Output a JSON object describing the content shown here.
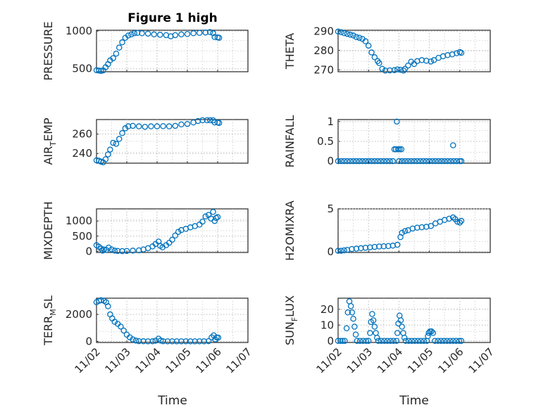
{
  "figure": {
    "title": "Figure 1 high"
  },
  "chart_data": [
    {
      "type": "scatter",
      "id": "pressure",
      "ylabel": "PRESSURE",
      "xlim": [
        0,
        5
      ],
      "ylim": [
        460,
        1010
      ],
      "yticks": [
        500,
        1000
      ],
      "xticks": [
        "11/02",
        "11/03",
        "11/04",
        "11/05",
        "11/06",
        "11/07"
      ],
      "points": [
        [
          0.0,
          480
        ],
        [
          0.08,
          475
        ],
        [
          0.15,
          470
        ],
        [
          0.22,
          478
        ],
        [
          0.3,
          520
        ],
        [
          0.38,
          560
        ],
        [
          0.45,
          610
        ],
        [
          0.55,
          640
        ],
        [
          0.65,
          700
        ],
        [
          0.75,
          780
        ],
        [
          0.85,
          850
        ],
        [
          0.95,
          910
        ],
        [
          1.05,
          940
        ],
        [
          1.15,
          955
        ],
        [
          1.25,
          970
        ],
        [
          1.35,
          975
        ],
        [
          1.5,
          970
        ],
        [
          1.7,
          965
        ],
        [
          1.9,
          955
        ],
        [
          2.1,
          950
        ],
        [
          2.3,
          945
        ],
        [
          2.45,
          930
        ],
        [
          2.6,
          945
        ],
        [
          2.8,
          955
        ],
        [
          3.0,
          960
        ],
        [
          3.2,
          970
        ],
        [
          3.4,
          975
        ],
        [
          3.6,
          980
        ],
        [
          3.75,
          985
        ],
        [
          3.85,
          970
        ],
        [
          3.9,
          920
        ],
        [
          4.0,
          915
        ],
        [
          4.05,
          910
        ]
      ]
    },
    {
      "type": "scatter",
      "id": "theta",
      "ylabel": "THETA",
      "xlim": [
        0,
        5
      ],
      "ylim": [
        269,
        290.5
      ],
      "yticks": [
        270,
        280,
        290
      ],
      "xticks": [
        "11/02",
        "11/03",
        "11/04",
        "11/05",
        "11/06",
        "11/07"
      ],
      "points": [
        [
          0.0,
          289.8
        ],
        [
          0.1,
          289.5
        ],
        [
          0.2,
          289.0
        ],
        [
          0.3,
          288.6
        ],
        [
          0.4,
          288.2
        ],
        [
          0.5,
          287.8
        ],
        [
          0.6,
          287.0
        ],
        [
          0.7,
          286.6
        ],
        [
          0.8,
          286.0
        ],
        [
          0.9,
          284.8
        ],
        [
          1.0,
          282.5
        ],
        [
          1.1,
          279.0
        ],
        [
          1.2,
          276.5
        ],
        [
          1.3,
          274.5
        ],
        [
          1.35,
          273.5
        ],
        [
          1.45,
          270.5
        ],
        [
          1.55,
          269.6
        ],
        [
          1.7,
          269.7
        ],
        [
          1.85,
          269.8
        ],
        [
          1.95,
          270.2
        ],
        [
          2.05,
          270.0
        ],
        [
          2.15,
          269.6
        ],
        [
          2.2,
          270.5
        ],
        [
          2.3,
          272.2
        ],
        [
          2.4,
          274.2
        ],
        [
          2.5,
          273.0
        ],
        [
          2.6,
          274.5
        ],
        [
          2.75,
          275.0
        ],
        [
          2.9,
          274.7
        ],
        [
          3.05,
          274.3
        ],
        [
          3.15,
          275.0
        ],
        [
          3.3,
          276.2
        ],
        [
          3.45,
          277.0
        ],
        [
          3.6,
          277.6
        ],
        [
          3.75,
          278.0
        ],
        [
          3.9,
          278.6
        ],
        [
          4.0,
          279.2
        ],
        [
          4.05,
          278.8
        ]
      ]
    },
    {
      "type": "scatter",
      "id": "air_temp",
      "ylabel": "AIR_TEMP",
      "xlim": [
        0,
        5
      ],
      "ylim": [
        230,
        275
      ],
      "yticks": [
        240,
        260
      ],
      "xticks": [
        "11/02",
        "11/03",
        "11/04",
        "11/05",
        "11/06",
        "11/07"
      ],
      "points": [
        [
          0.0,
          233
        ],
        [
          0.08,
          232.5
        ],
        [
          0.15,
          231.5
        ],
        [
          0.22,
          230.8
        ],
        [
          0.3,
          234
        ],
        [
          0.38,
          239
        ],
        [
          0.45,
          244
        ],
        [
          0.55,
          251
        ],
        [
          0.65,
          250
        ],
        [
          0.75,
          255
        ],
        [
          0.85,
          261
        ],
        [
          0.95,
          266
        ],
        [
          1.05,
          268
        ],
        [
          1.2,
          268.5
        ],
        [
          1.4,
          268
        ],
        [
          1.6,
          267.5
        ],
        [
          1.8,
          268
        ],
        [
          2.0,
          268
        ],
        [
          2.2,
          268.2
        ],
        [
          2.4,
          268
        ],
        [
          2.6,
          268.5
        ],
        [
          2.8,
          270
        ],
        [
          3.0,
          270.5
        ],
        [
          3.2,
          272
        ],
        [
          3.35,
          273.5
        ],
        [
          3.5,
          275
        ],
        [
          3.65,
          276
        ],
        [
          3.75,
          277
        ],
        [
          3.85,
          275
        ],
        [
          3.9,
          272
        ],
        [
          4.0,
          272
        ],
        [
          4.05,
          271.5
        ]
      ]
    },
    {
      "type": "scatter",
      "id": "rainfall",
      "ylabel": "RAINFALL",
      "xlim": [
        0,
        5
      ],
      "ylim": [
        -0.05,
        1.05
      ],
      "yticks": [
        0,
        0.5,
        1
      ],
      "ytick_labels": [
        "0",
        "0.5",
        "1"
      ],
      "xticks": [
        "11/02",
        "11/03",
        "11/04",
        "11/05",
        "11/06",
        "11/07"
      ],
      "points": [
        [
          0.0,
          0
        ],
        [
          0.1,
          0
        ],
        [
          0.2,
          0
        ],
        [
          0.3,
          0
        ],
        [
          0.4,
          0
        ],
        [
          0.5,
          0
        ],
        [
          0.6,
          0
        ],
        [
          0.7,
          0
        ],
        [
          0.8,
          0
        ],
        [
          0.9,
          0
        ],
        [
          1.0,
          0
        ],
        [
          1.1,
          0
        ],
        [
          1.2,
          0
        ],
        [
          1.3,
          0
        ],
        [
          1.4,
          0
        ],
        [
          1.5,
          0
        ],
        [
          1.6,
          0
        ],
        [
          1.7,
          0
        ],
        [
          1.8,
          0
        ],
        [
          1.85,
          0.3
        ],
        [
          1.9,
          0.3
        ],
        [
          1.93,
          1.0
        ],
        [
          1.97,
          0.3
        ],
        [
          2.02,
          0.3
        ],
        [
          2.08,
          0.3
        ],
        [
          2.0,
          0
        ],
        [
          2.1,
          0
        ],
        [
          2.2,
          0
        ],
        [
          2.3,
          0
        ],
        [
          2.4,
          0
        ],
        [
          2.5,
          0
        ],
        [
          2.6,
          0
        ],
        [
          2.7,
          0
        ],
        [
          2.8,
          0
        ],
        [
          2.9,
          0
        ],
        [
          3.0,
          0
        ],
        [
          3.1,
          0
        ],
        [
          3.2,
          0
        ],
        [
          3.3,
          0
        ],
        [
          3.4,
          0
        ],
        [
          3.5,
          0
        ],
        [
          3.6,
          0
        ],
        [
          3.7,
          0
        ],
        [
          3.78,
          0.4
        ],
        [
          3.8,
          0
        ],
        [
          3.9,
          0
        ],
        [
          4.0,
          0
        ],
        [
          4.05,
          0
        ]
      ]
    },
    {
      "type": "scatter",
      "id": "mixdepth",
      "ylabel": "MIXDEPTH",
      "xlim": [
        0,
        5
      ],
      "ylim": [
        -40,
        1400
      ],
      "yticks": [
        0,
        500,
        1000
      ],
      "xticks": [
        "11/02",
        "11/03",
        "11/04",
        "11/05",
        "11/06",
        "11/07"
      ],
      "points": [
        [
          0.0,
          200
        ],
        [
          0.08,
          150
        ],
        [
          0.15,
          90
        ],
        [
          0.2,
          20
        ],
        [
          0.25,
          60
        ],
        [
          0.32,
          40
        ],
        [
          0.4,
          120
        ],
        [
          0.5,
          60
        ],
        [
          0.6,
          20
        ],
        [
          0.7,
          10
        ],
        [
          0.85,
          5
        ],
        [
          1.0,
          10
        ],
        [
          1.2,
          20
        ],
        [
          1.4,
          30
        ],
        [
          1.55,
          60
        ],
        [
          1.7,
          100
        ],
        [
          1.85,
          160
        ],
        [
          1.95,
          240
        ],
        [
          2.05,
          320
        ],
        [
          2.1,
          180
        ],
        [
          2.18,
          130
        ],
        [
          2.3,
          200
        ],
        [
          2.4,
          280
        ],
        [
          2.5,
          380
        ],
        [
          2.6,
          520
        ],
        [
          2.7,
          640
        ],
        [
          2.8,
          700
        ],
        [
          2.95,
          740
        ],
        [
          3.1,
          790
        ],
        [
          3.25,
          830
        ],
        [
          3.4,
          880
        ],
        [
          3.5,
          980
        ],
        [
          3.6,
          1150
        ],
        [
          3.7,
          1200
        ],
        [
          3.78,
          1080
        ],
        [
          3.85,
          1300
        ],
        [
          3.9,
          1000
        ],
        [
          3.95,
          1100
        ],
        [
          4.0,
          1130
        ]
      ]
    },
    {
      "type": "scatter",
      "id": "h2omixra",
      "ylabel": "H2OMIXRA",
      "xlim": [
        0,
        5
      ],
      "ylim": [
        -0.1,
        5
      ],
      "yticks": [
        0,
        5
      ],
      "xticks": [
        "11/02",
        "11/03",
        "11/04",
        "11/05",
        "11/06",
        "11/07"
      ],
      "points": [
        [
          0.0,
          0.1
        ],
        [
          0.1,
          0.1
        ],
        [
          0.2,
          0.15
        ],
        [
          0.3,
          0.2
        ],
        [
          0.45,
          0.3
        ],
        [
          0.6,
          0.35
        ],
        [
          0.75,
          0.4
        ],
        [
          0.9,
          0.45
        ],
        [
          1.05,
          0.5
        ],
        [
          1.2,
          0.55
        ],
        [
          1.35,
          0.6
        ],
        [
          1.5,
          0.62
        ],
        [
          1.65,
          0.65
        ],
        [
          1.8,
          0.7
        ],
        [
          1.95,
          0.8
        ],
        [
          2.05,
          1.7
        ],
        [
          2.1,
          2.2
        ],
        [
          2.2,
          2.4
        ],
        [
          2.3,
          2.5
        ],
        [
          2.45,
          2.7
        ],
        [
          2.6,
          2.8
        ],
        [
          2.75,
          2.85
        ],
        [
          2.9,
          2.9
        ],
        [
          3.05,
          3.0
        ],
        [
          3.2,
          3.3
        ],
        [
          3.35,
          3.5
        ],
        [
          3.5,
          3.7
        ],
        [
          3.65,
          3.85
        ],
        [
          3.78,
          4.0
        ],
        [
          3.85,
          3.8
        ],
        [
          3.92,
          3.5
        ],
        [
          4.0,
          3.4
        ],
        [
          4.05,
          3.6
        ]
      ]
    },
    {
      "type": "scatter",
      "id": "terr_msl",
      "ylabel": "TERR_MSL",
      "xlim": [
        0,
        5
      ],
      "ylim": [
        -80,
        3200
      ],
      "yticks": [
        0,
        2000
      ],
      "xticks": [
        "11/02",
        "11/03",
        "11/04",
        "11/05",
        "11/06",
        "11/07"
      ],
      "points": [
        [
          0.0,
          2900
        ],
        [
          0.08,
          3000
        ],
        [
          0.15,
          3050
        ],
        [
          0.25,
          3000
        ],
        [
          0.32,
          2900
        ],
        [
          0.38,
          2600
        ],
        [
          0.45,
          2000
        ],
        [
          0.52,
          1700
        ],
        [
          0.6,
          1450
        ],
        [
          0.7,
          1300
        ],
        [
          0.8,
          1100
        ],
        [
          0.9,
          800
        ],
        [
          1.0,
          500
        ],
        [
          1.1,
          300
        ],
        [
          1.2,
          150
        ],
        [
          1.3,
          60
        ],
        [
          1.4,
          20
        ],
        [
          1.55,
          10
        ],
        [
          1.7,
          5
        ],
        [
          1.85,
          10
        ],
        [
          1.95,
          50
        ],
        [
          2.05,
          200
        ],
        [
          2.12,
          60
        ],
        [
          2.2,
          10
        ],
        [
          2.35,
          5
        ],
        [
          2.5,
          5
        ],
        [
          2.65,
          5
        ],
        [
          2.8,
          5
        ],
        [
          2.95,
          5
        ],
        [
          3.1,
          5
        ],
        [
          3.25,
          5
        ],
        [
          3.4,
          5
        ],
        [
          3.55,
          5
        ],
        [
          3.7,
          20
        ],
        [
          3.8,
          300
        ],
        [
          3.87,
          450
        ],
        [
          3.92,
          150
        ],
        [
          3.97,
          300
        ],
        [
          4.02,
          280
        ]
      ]
    },
    {
      "type": "scatter",
      "id": "sun_flux",
      "ylabel": "SUN_FLUX",
      "xlim": [
        0,
        5
      ],
      "ylim": [
        -1,
        27
      ],
      "yticks": [
        0,
        10,
        20
      ],
      "xticks": [
        "11/02",
        "11/03",
        "11/04",
        "11/05",
        "11/06",
        "11/07"
      ],
      "points": [
        [
          0.0,
          0
        ],
        [
          0.08,
          0
        ],
        [
          0.15,
          0
        ],
        [
          0.22,
          0
        ],
        [
          0.28,
          8
        ],
        [
          0.32,
          18
        ],
        [
          0.37,
          25
        ],
        [
          0.42,
          22
        ],
        [
          0.46,
          18
        ],
        [
          0.5,
          14
        ],
        [
          0.54,
          9
        ],
        [
          0.58,
          4
        ],
        [
          0.62,
          0
        ],
        [
          0.72,
          0
        ],
        [
          0.82,
          0
        ],
        [
          0.92,
          0
        ],
        [
          1.0,
          0
        ],
        [
          1.05,
          5
        ],
        [
          1.08,
          12
        ],
        [
          1.12,
          17
        ],
        [
          1.16,
          13
        ],
        [
          1.2,
          9
        ],
        [
          1.24,
          5
        ],
        [
          1.28,
          2
        ],
        [
          1.32,
          0
        ],
        [
          1.42,
          0
        ],
        [
          1.52,
          0
        ],
        [
          1.62,
          0
        ],
        [
          1.72,
          0
        ],
        [
          1.82,
          0
        ],
        [
          1.92,
          0
        ],
        [
          1.95,
          5
        ],
        [
          1.98,
          11
        ],
        [
          2.02,
          16
        ],
        [
          2.06,
          13
        ],
        [
          2.1,
          9
        ],
        [
          2.14,
          5
        ],
        [
          2.18,
          2
        ],
        [
          2.22,
          0
        ],
        [
          2.32,
          0
        ],
        [
          2.42,
          0
        ],
        [
          2.52,
          0
        ],
        [
          2.62,
          0
        ],
        [
          2.72,
          0
        ],
        [
          2.82,
          0
        ],
        [
          2.92,
          0
        ],
        [
          2.95,
          3
        ],
        [
          2.98,
          5
        ],
        [
          3.02,
          6
        ],
        [
          3.07,
          6
        ],
        [
          3.12,
          5
        ],
        [
          3.18,
          0
        ],
        [
          3.28,
          0
        ],
        [
          3.38,
          0
        ],
        [
          3.48,
          0
        ],
        [
          3.58,
          0
        ],
        [
          3.68,
          0
        ],
        [
          3.78,
          0
        ],
        [
          3.88,
          0
        ],
        [
          3.98,
          0
        ],
        [
          4.05,
          0
        ]
      ]
    }
  ],
  "xlabels": {
    "left": "Time",
    "right": "Time"
  }
}
